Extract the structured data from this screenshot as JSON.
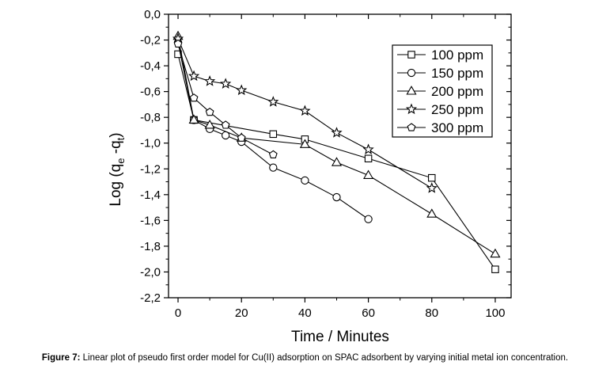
{
  "chart_data": {
    "type": "line",
    "xlabel": "Time / Minutes",
    "ylabel_parts": [
      "Log (q",
      "e",
      " -q",
      "t",
      ")"
    ],
    "xlim": [
      -3,
      105
    ],
    "ylim": [
      -2.2,
      0.0
    ],
    "x_ticks": [
      0,
      20,
      40,
      60,
      80,
      100
    ],
    "y_ticks": [
      0.0,
      -0.2,
      -0.4,
      -0.6,
      -0.8,
      -1.0,
      -1.2,
      -1.4,
      -1.6,
      -1.8,
      -2.0,
      -2.2
    ],
    "y_tick_labels": [
      "0,0",
      "-0,2",
      "-0,4",
      "-0,6",
      "-0,8",
      "-1,0",
      "-1,2",
      "-1,4",
      "-1,6",
      "-1,8",
      "-2,0",
      "-2,2"
    ],
    "grid": false,
    "legend_position": "top-right",
    "series": [
      {
        "name": "100 ppm",
        "marker": "square",
        "x": [
          0,
          5,
          30,
          40,
          60,
          80,
          100
        ],
        "y": [
          -0.31,
          -0.82,
          -0.93,
          -0.97,
          -1.12,
          -1.27,
          -1.98
        ]
      },
      {
        "name": "150 ppm",
        "marker": "circle",
        "x": [
          0,
          5,
          10,
          15,
          20,
          30,
          40,
          50,
          60
        ],
        "y": [
          -0.22,
          -0.82,
          -0.89,
          -0.94,
          -0.99,
          -1.19,
          -1.29,
          -1.42,
          -1.59
        ]
      },
      {
        "name": "200 ppm",
        "marker": "triangle",
        "x": [
          0,
          5,
          10,
          20,
          40,
          50,
          60,
          80,
          100
        ],
        "y": [
          -0.17,
          -0.82,
          -0.86,
          -0.96,
          -1.01,
          -1.15,
          -1.25,
          -1.55,
          -1.86
        ]
      },
      {
        "name": "250 ppm",
        "marker": "star",
        "x": [
          0,
          5,
          10,
          15,
          20,
          30,
          40,
          50,
          60,
          80
        ],
        "y": [
          -0.19,
          -0.48,
          -0.52,
          -0.54,
          -0.59,
          -0.68,
          -0.75,
          -0.92,
          -1.05,
          -1.35
        ]
      },
      {
        "name": "300 ppm",
        "marker": "pentagon",
        "x": [
          0,
          5,
          10,
          15,
          20,
          30
        ],
        "y": [
          -0.23,
          -0.65,
          -0.76,
          -0.86,
          -0.96,
          -1.09
        ]
      }
    ]
  },
  "caption": {
    "label": "Figure 7:",
    "text": " Linear plot of pseudo first order model for Cu(II) adsorption on SPAC adsorbent by varying initial metal ion concentration."
  }
}
